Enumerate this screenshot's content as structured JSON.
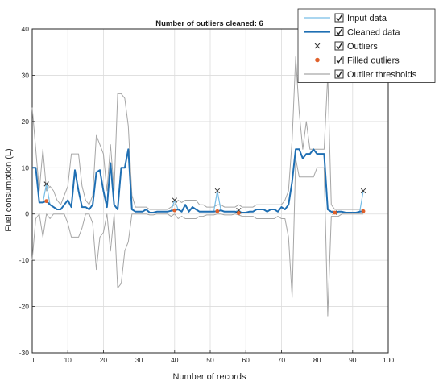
{
  "chart_data": {
    "type": "line",
    "title": "Number of outliers cleaned: 6",
    "xlabel": "Number of records",
    "ylabel": "Fuel consumption (L)",
    "xlim": [
      0,
      100
    ],
    "ylim": [
      -30,
      40
    ],
    "xticks": [
      0,
      10,
      20,
      30,
      40,
      50,
      60,
      70,
      80,
      90,
      100
    ],
    "yticks": [
      -30,
      -20,
      -10,
      0,
      10,
      20,
      30,
      40
    ],
    "grid": true,
    "legend_position": "top-right",
    "legend": [
      {
        "label": "Input data",
        "style": "line",
        "color": "#77bde6",
        "checked": true
      },
      {
        "label": "Cleaned data",
        "style": "thickline",
        "color": "#1f6fb3",
        "checked": true
      },
      {
        "label": "Outliers",
        "style": "cross",
        "color": "#333333",
        "checked": true
      },
      {
        "label": "Filled outliers",
        "style": "dot",
        "color": "#e0602a",
        "checked": true
      },
      {
        "label": "Outlier thresholds",
        "style": "line",
        "color": "#a6a6a6",
        "checked": true
      }
    ],
    "series": [
      {
        "name": "Input data",
        "color": "#77bde6",
        "x": [
          0,
          1,
          2,
          3,
          4,
          5,
          6,
          7,
          8,
          9,
          10,
          11,
          12,
          13,
          14,
          15,
          16,
          17,
          18,
          19,
          20,
          21,
          22,
          23,
          24,
          25,
          26,
          27,
          28,
          29,
          30,
          31,
          32,
          33,
          34,
          35,
          36,
          37,
          38,
          39,
          40,
          41,
          42,
          43,
          44,
          45,
          46,
          47,
          48,
          49,
          50,
          51,
          52,
          53,
          54,
          55,
          56,
          57,
          58,
          59,
          60,
          61,
          62,
          63,
          64,
          65,
          66,
          67,
          68,
          69,
          70,
          71,
          72,
          73,
          74,
          75,
          76,
          77,
          78,
          79,
          80,
          81,
          82,
          83,
          84,
          85,
          86,
          87,
          88,
          89,
          90,
          91,
          92,
          93
        ],
        "y": [
          10,
          10,
          2.5,
          2.5,
          6.5,
          2,
          1.5,
          1,
          1,
          2,
          3,
          1.5,
          9.5,
          5,
          1.5,
          1.5,
          1,
          2,
          9,
          9.5,
          5,
          1.5,
          11,
          2,
          1,
          10,
          10,
          14,
          1,
          0.5,
          0.5,
          0.5,
          1,
          0.3,
          0.3,
          0.5,
          0.5,
          0.5,
          0.5,
          0.7,
          3,
          1,
          0.5,
          2,
          0.5,
          1.5,
          1,
          0.5,
          0.5,
          0.5,
          0.5,
          0.5,
          5,
          0.8,
          0.5,
          0.5,
          0.5,
          0.5,
          0.8,
          0.3,
          0.3,
          0.5,
          0.5,
          1,
          1,
          1,
          0.5,
          1,
          1,
          0.5,
          1.5,
          1,
          2,
          7,
          14,
          14,
          12,
          13,
          13,
          14,
          13,
          13,
          13,
          1,
          0.5,
          0.3,
          0.5,
          0.5,
          0.3,
          0.3,
          0.3,
          0.3,
          0.5,
          5
        ]
      },
      {
        "name": "Cleaned data",
        "color": "#1f6fb3",
        "x": [
          0,
          1,
          2,
          3,
          4,
          5,
          6,
          7,
          8,
          9,
          10,
          11,
          12,
          13,
          14,
          15,
          16,
          17,
          18,
          19,
          20,
          21,
          22,
          23,
          24,
          25,
          26,
          27,
          28,
          29,
          30,
          31,
          32,
          33,
          34,
          35,
          36,
          37,
          38,
          39,
          40,
          41,
          42,
          43,
          44,
          45,
          46,
          47,
          48,
          49,
          50,
          51,
          52,
          53,
          54,
          55,
          56,
          57,
          58,
          59,
          60,
          61,
          62,
          63,
          64,
          65,
          66,
          67,
          68,
          69,
          70,
          71,
          72,
          73,
          74,
          75,
          76,
          77,
          78,
          79,
          80,
          81,
          82,
          83,
          84,
          85,
          86,
          87,
          88,
          89,
          90,
          91,
          92,
          93
        ],
        "y": [
          10,
          10,
          2.5,
          2.5,
          2.8,
          2,
          1.5,
          1,
          1,
          2,
          3,
          1.5,
          9.5,
          5,
          1.5,
          1.5,
          1,
          2,
          9,
          9.5,
          5,
          1.5,
          11,
          2,
          1,
          10,
          10,
          14,
          1,
          0.5,
          0.5,
          0.5,
          1,
          0.3,
          0.3,
          0.5,
          0.5,
          0.5,
          0.5,
          0.7,
          0.8,
          1,
          0.5,
          2,
          0.5,
          1.5,
          1,
          0.5,
          0.5,
          0.5,
          0.5,
          0.5,
          0.6,
          0.8,
          0.5,
          0.5,
          0.5,
          0.5,
          0.2,
          0.3,
          0.3,
          0.5,
          0.5,
          1,
          1,
          1,
          0.5,
          1,
          1,
          0.5,
          1.5,
          1,
          2,
          7,
          14,
          14,
          12,
          13,
          13,
          14,
          13,
          13,
          13,
          1,
          0.5,
          0.3,
          0.5,
          0.5,
          0.3,
          0.3,
          0.3,
          0.3,
          0.5,
          0.6
        ]
      },
      {
        "name": "Outliers",
        "color": "#333333",
        "x": [
          4,
          40,
          52,
          58,
          85,
          93
        ],
        "y": [
          6.5,
          3,
          5,
          0.8,
          0.3,
          5
        ]
      },
      {
        "name": "Filled outliers",
        "color": "#e0602a",
        "x": [
          4,
          40,
          52,
          58,
          85,
          93
        ],
        "y": [
          2.8,
          0.8,
          0.6,
          0.2,
          0.3,
          0.6
        ]
      },
      {
        "name": "Outlier upper threshold",
        "color": "#a6a6a6",
        "x": [
          0,
          1,
          2,
          3,
          4,
          5,
          6,
          7,
          8,
          9,
          10,
          11,
          12,
          13,
          14,
          15,
          16,
          17,
          18,
          19,
          20,
          21,
          22,
          23,
          24,
          25,
          26,
          27,
          28,
          29,
          30,
          31,
          32,
          33,
          34,
          35,
          36,
          37,
          38,
          39,
          40,
          41,
          42,
          43,
          44,
          45,
          46,
          47,
          48,
          49,
          50,
          51,
          52,
          53,
          54,
          55,
          56,
          57,
          58,
          59,
          60,
          61,
          62,
          63,
          64,
          65,
          66,
          67,
          68,
          69,
          70,
          71,
          72,
          73,
          74,
          75,
          76,
          77,
          78,
          79,
          80,
          81,
          82,
          83,
          84,
          85,
          86,
          87,
          88,
          89,
          90,
          91,
          92,
          93
        ],
        "y": [
          23,
          14,
          5,
          14,
          5,
          6,
          5,
          3,
          2,
          4,
          6,
          13,
          13,
          13,
          6,
          3,
          2,
          4,
          17,
          15,
          13,
          5,
          15,
          5,
          26,
          26,
          25,
          19,
          4,
          1.5,
          1.5,
          1.5,
          1.5,
          1,
          1,
          1,
          1,
          1,
          1,
          1.5,
          2,
          3,
          2.5,
          3,
          3,
          3,
          3,
          2,
          2,
          1.5,
          1.5,
          1.5,
          2,
          2,
          1.5,
          1.5,
          1.5,
          1.5,
          2,
          1.5,
          1.5,
          1.5,
          1.5,
          2,
          2,
          2,
          2,
          2,
          2,
          2,
          2,
          3,
          5,
          16,
          34,
          22,
          14,
          20,
          14,
          14,
          14,
          14,
          14,
          30,
          2,
          1,
          1,
          1,
          1,
          1,
          1,
          1,
          1,
          1
        ]
      },
      {
        "name": "Outlier lower threshold",
        "color": "#a6a6a6",
        "x": [
          0,
          1,
          2,
          3,
          4,
          5,
          6,
          7,
          8,
          9,
          10,
          11,
          12,
          13,
          14,
          15,
          16,
          17,
          18,
          19,
          20,
          21,
          22,
          23,
          24,
          25,
          26,
          27,
          28,
          29,
          30,
          31,
          32,
          33,
          34,
          35,
          36,
          37,
          38,
          39,
          40,
          41,
          42,
          43,
          44,
          45,
          46,
          47,
          48,
          49,
          50,
          51,
          52,
          53,
          54,
          55,
          56,
          57,
          58,
          59,
          60,
          61,
          62,
          63,
          64,
          65,
          66,
          67,
          68,
          69,
          70,
          71,
          72,
          73,
          74,
          75,
          76,
          77,
          78,
          79,
          80,
          81,
          82,
          83,
          84,
          85,
          86,
          87,
          88,
          89,
          90,
          91,
          92,
          93
        ],
        "y": [
          -10,
          -1,
          0,
          -5,
          0,
          -1,
          0,
          0,
          0,
          0,
          -2,
          -5,
          -5,
          -5,
          -3,
          0,
          0,
          -2,
          -12,
          -5,
          -4,
          0,
          -8,
          0,
          -16,
          -15,
          -8,
          -6,
          0,
          0,
          0,
          0,
          0,
          -0.2,
          -0.2,
          0,
          0,
          0,
          0,
          -0.5,
          0,
          -1,
          -0.5,
          -1,
          -1,
          -1,
          -1,
          -0.5,
          -0.5,
          -0.2,
          -0.2,
          -0.2,
          0,
          0,
          -0.2,
          -0.2,
          -0.2,
          0,
          -0.2,
          -0.5,
          -0.5,
          -0.5,
          -0.5,
          -1,
          -1,
          -1,
          -1,
          -1,
          -1,
          -0.5,
          -1,
          -1,
          -5,
          -18,
          12,
          8,
          8,
          8,
          8,
          8,
          10,
          10,
          10,
          -22,
          -0.5,
          -0.5,
          -0.5,
          0,
          0,
          0,
          0,
          0,
          0,
          0
        ]
      }
    ]
  }
}
